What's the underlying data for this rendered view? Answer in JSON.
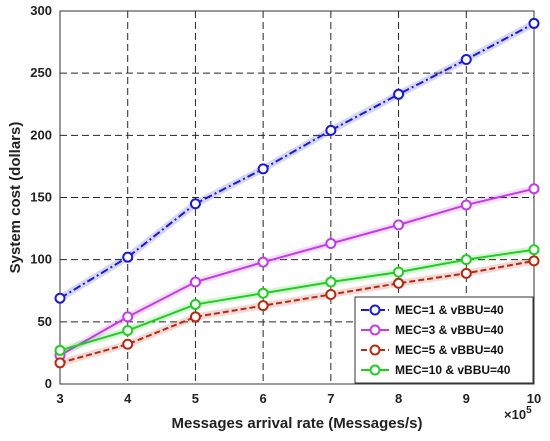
{
  "chart_data": {
    "type": "line",
    "xlabel": "Messages arrival rate (Messages/s)",
    "ylabel": "System cost (dollars)",
    "x_multiplier": "×10",
    "x_multiplier_exp": "5",
    "x": [
      3,
      4,
      5,
      6,
      7,
      8,
      9,
      10
    ],
    "xlim": [
      3,
      10
    ],
    "ylim": [
      0,
      300
    ],
    "xticks": [
      "3",
      "4",
      "5",
      "6",
      "7",
      "8",
      "9",
      "10"
    ],
    "yticks": [
      "0",
      "50",
      "100",
      "150",
      "200",
      "250",
      "300"
    ],
    "grid": true,
    "legend_position": "bottom-right",
    "series": [
      {
        "name": "MEC=1 & vBBU=40",
        "color": "#1a1ad6",
        "dash": "8,3,2,3",
        "values": [
          69,
          102,
          145,
          173,
          204,
          233,
          261,
          290
        ]
      },
      {
        "name": "MEC=3 & vBBU=40",
        "color": "#c23ce6",
        "dash": "",
        "values": [
          23,
          54,
          82,
          98,
          113,
          128,
          144,
          157
        ]
      },
      {
        "name": "MEC=5 & vBBU=40",
        "color": "#b42a14",
        "dash": "6,3",
        "values": [
          17,
          32,
          54,
          63,
          72,
          81,
          89,
          99
        ]
      },
      {
        "name": "MEC=10 & vBBU=40",
        "color": "#22cc22",
        "dash": "",
        "values": [
          27,
          43,
          64,
          73,
          82,
          90,
          100,
          108
        ]
      }
    ]
  }
}
